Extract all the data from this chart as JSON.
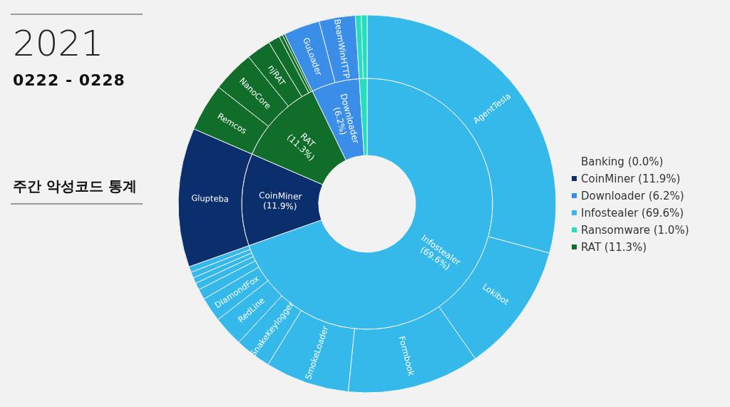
{
  "chart_data": [
    {
      "type": "donut",
      "title": "2021",
      "subtitle": "0222 - 0228",
      "annotations": [
        "주간 악성코드 통계"
      ],
      "legend": "right",
      "categories": [
        "Infostealer (69.6%)",
        "Banking (0.0%)",
        "CoinMiner (11.9%)",
        "RAT (11.3%)",
        "Downloader (6.2%)",
        "Ransomware (1.0%)"
      ],
      "values": [
        69.6,
        0.0,
        11.9,
        11.3,
        6.2,
        1.0
      ],
      "colors": [
        "#35b9ea",
        null,
        "#0b2f6d",
        "#116d2a",
        "#3a8ee8",
        "#22e0bf"
      ]
    },
    {
      "type": "donut",
      "categories": [
        "AgentTesla",
        "Lokibot",
        "Formbook",
        "SmokeLoader",
        "SnakeKeylogger",
        "RedLine",
        "DiamondFox",
        null,
        null,
        null,
        null,
        null,
        "Glupteba",
        "Remcos",
        "NanoCore",
        "njRAT",
        null,
        null,
        null,
        "GuLoader",
        "BeamWinHTTP",
        null,
        null
      ],
      "values": [
        29.2,
        11.1,
        11.3,
        7.2,
        3.1,
        2.6,
        2.1,
        0.9,
        0.6,
        0.5,
        0.5,
        0.5,
        11.9,
        4.1,
        3.6,
        2.1,
        1.0,
        0.3,
        0.2,
        3.1,
        3.1,
        0.5,
        0.5
      ],
      "colors": [
        "#35b9ea",
        "#35b9ea",
        "#35b9ea",
        "#35b9ea",
        "#35b9ea",
        "#35b9ea",
        "#35b9ea",
        "#35b9ea",
        "#35b9ea",
        "#35b9ea",
        "#35b9ea",
        "#35b9ea",
        "#0b2f6d",
        "#116d2a",
        "#116d2a",
        "#116d2a",
        "#116d2a",
        "#116d2a",
        "#116d2a",
        "#3a8ee8",
        "#3a8ee8",
        "#22e0bf",
        "#22e0bf"
      ]
    }
  ]
}
